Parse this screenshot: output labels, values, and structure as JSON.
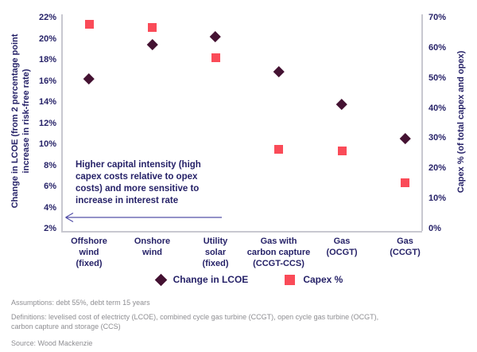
{
  "colors": {
    "accent_navy": "#262268",
    "marker_lcoe": "#441232",
    "marker_capex": "#fa4b58",
    "axis_line": "#c8c8d0",
    "arrow": "#5350a8",
    "footnote_gray": "#8e8e92"
  },
  "chart_data": {
    "type": "scatter",
    "categories": [
      {
        "label": "Offshore wind (fixed)",
        "lines": [
          "Offshore",
          "wind",
          "(fixed)"
        ]
      },
      {
        "label": "Onshore wind",
        "lines": [
          "Onshore",
          "wind"
        ]
      },
      {
        "label": "Utility solar (fixed)",
        "lines": [
          "Utility",
          "solar",
          "(fixed)"
        ]
      },
      {
        "label": "Gas with carbon capture (CCGT-CCS)",
        "lines": [
          "Gas with",
          "carbon capture",
          "(CCGT-CCS)"
        ]
      },
      {
        "label": "Gas (OCGT)",
        "lines": [
          "Gas",
          "(OCGT)"
        ]
      },
      {
        "label": "Gas (CCGT)",
        "lines": [
          "Gas",
          "(CCGT)"
        ]
      }
    ],
    "series": [
      {
        "name": "Change in LCOE",
        "marker": "diamond",
        "axis": "left",
        "values_pct": [
          16.3,
          19.5,
          20.3,
          17.0,
          13.9,
          10.6
        ]
      },
      {
        "name": "Capex %",
        "marker": "square",
        "axis": "right",
        "values_pct": [
          68,
          67,
          57,
          26.5,
          26,
          15.5
        ]
      }
    ],
    "left_axis": {
      "label": "Change in LCOE (from 2 percentage point increase in risk-free rate)",
      "label_lines": [
        "Change in LCOE (from 2 percentage point",
        "increase in risk-free rate)"
      ],
      "min": 2,
      "max": 22,
      "step": 2,
      "tick_suffix": "%"
    },
    "right_axis": {
      "label": "Capex % (of total capex and opex)",
      "label_lines": [
        "Capex % (of total capex and opex)"
      ],
      "min": 0,
      "max": 70,
      "step": 10,
      "tick_suffix": "%"
    },
    "annotation": {
      "text": "Higher capital intensity (high capex costs relative to opex costs) and more sensitive to increase in interest rate",
      "lines": [
        "Higher capital intensity (high",
        "capex costs relative to opex",
        "costs) and more sensitive to",
        "increase in interest rate"
      ],
      "arrow": "points-left"
    },
    "legend": {
      "position": "bottom-center",
      "items": [
        "Change in LCOE",
        "Capex %"
      ]
    },
    "layout_hints": {
      "grid": false,
      "left_ylim": [
        2,
        22
      ],
      "right_ylim": [
        0,
        70
      ]
    }
  },
  "footnotes": {
    "assumptions": "Assumptions: debt 55%, debt term 15 years",
    "definitions": "Definitions: levelised cost of electricty (LCOE), combined cycle gas turbine (CCGT), open cycle gas turbine (OCGT), carbon capture and storage (CCS)",
    "source": "Source: Wood Mackenzie"
  }
}
